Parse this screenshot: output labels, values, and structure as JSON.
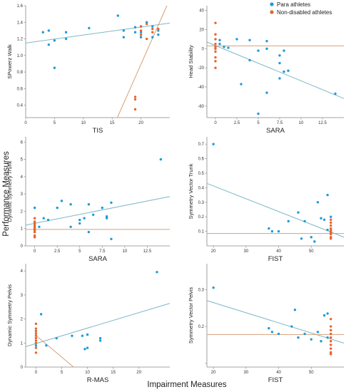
{
  "figure": {
    "ylabel": "Performance Measures",
    "xlabel": "Impairment Measures",
    "legend": [
      {
        "name": "Para athletes",
        "color": "#1f9bd7"
      },
      {
        "name": "Non-disabled athletes",
        "color": "#e8632b"
      }
    ],
    "colors": {
      "para_line": "#7fb7c8",
      "nd_line": "#d6a07a",
      "axis": "#888888"
    }
  },
  "chart_data": [
    {
      "type": "scatter",
      "xlabel": "TIS",
      "ylabel": "SPowerz Walk",
      "xlim": [
        0,
        25
      ],
      "ylim": [
        0.25,
        1.6
      ],
      "xticks": [
        0,
        5,
        10,
        15,
        20
      ],
      "yticks": [
        0.4,
        0.6,
        0.8,
        1.0,
        1.2,
        1.4,
        1.6
      ],
      "ytick_labels": [
        "0.4",
        "0.6",
        "0.8",
        "1.0",
        "1.2",
        "1.4",
        "1.6"
      ],
      "series": [
        {
          "name": "Para athletes",
          "x": [
            3,
            4,
            4,
            5,
            5,
            7,
            7,
            11,
            16,
            17,
            17,
            19,
            19,
            20,
            20,
            20,
            21,
            22,
            22,
            23,
            23
          ],
          "y": [
            1.28,
            1.3,
            1.13,
            1.18,
            0.85,
            1.28,
            1.2,
            1.33,
            1.48,
            1.3,
            1.22,
            1.34,
            1.28,
            1.35,
            1.28,
            1.22,
            1.4,
            1.35,
            1.22,
            1.3,
            1.25
          ]
        },
        {
          "name": "Non-disabled athletes",
          "x": [
            19,
            19,
            19,
            20,
            20,
            20,
            21,
            21,
            22,
            22,
            23
          ],
          "y": [
            0.5,
            0.47,
            0.35,
            1.3,
            1.25,
            1.35,
            1.2,
            1.38,
            1.28,
            1.32,
            1.32
          ]
        }
      ],
      "fit_lines": [
        {
          "name": "Para athletes",
          "x": [
            0,
            25
          ],
          "y": [
            1.15,
            1.39
          ]
        },
        {
          "name": "Non-disabled athletes",
          "x": [
            15.9,
            24.5
          ],
          "y": [
            0.25,
            1.6
          ]
        }
      ]
    },
    {
      "type": "scatter",
      "xlabel": "SARA",
      "ylabel": "Head Stability",
      "xlim": [
        -1,
        15
      ],
      "ylim": [
        -72,
        45
      ],
      "xticks": [
        0,
        2.5,
        5,
        7.5,
        10,
        12.5
      ],
      "xtick_labels": [
        "0",
        "2.5",
        "5",
        "7.5",
        "10",
        "12.5"
      ],
      "yticks": [
        -60,
        -40,
        -20,
        0,
        20,
        40
      ],
      "series": [
        {
          "name": "Para athletes",
          "x": [
            0.5,
            0.5,
            1,
            1.5,
            2.5,
            3,
            4,
            4,
            5,
            5,
            6,
            6,
            6,
            7.5,
            7.5,
            7.5,
            8,
            8,
            8.5,
            14
          ],
          "y": [
            9,
            5,
            2,
            1,
            10,
            -37,
            9,
            -12,
            -68,
            -2,
            -46,
            8,
            0,
            -7,
            -15,
            -31,
            -24,
            -2,
            -23,
            -47
          ]
        },
        {
          "name": "Non-disabled athletes",
          "x": [
            0,
            0,
            0,
            0,
            0,
            0,
            0,
            0,
            0,
            0
          ],
          "y": [
            27,
            15,
            10,
            5,
            0,
            -3,
            -9,
            -13,
            -20,
            2
          ]
        }
      ],
      "fit_lines": [
        {
          "name": "Para athletes",
          "x": [
            -1,
            15
          ],
          "y": [
            7,
            -52
          ]
        },
        {
          "name": "Non-disabled athletes",
          "x": [
            -1,
            15
          ],
          "y": [
            3,
            3
          ]
        }
      ]
    },
    {
      "type": "scatter",
      "xlabel": "SARA",
      "ylabel": "Dynamic Symmetry Trunk",
      "xlim": [
        -1,
        15
      ],
      "ylim": [
        0,
        6.3
      ],
      "xticks": [
        0,
        2.5,
        5,
        7.5,
        10,
        12.5
      ],
      "xtick_labels": [
        "0",
        "2.5",
        "5",
        "7.5",
        "10",
        "12.5"
      ],
      "yticks": [
        0,
        1,
        2,
        3,
        4,
        5,
        6
      ],
      "series": [
        {
          "name": "Para athletes",
          "x": [
            0,
            0.5,
            1,
            1.5,
            2.5,
            3,
            4,
            4,
            5,
            5,
            5.5,
            6,
            6,
            6.5,
            7.5,
            8,
            8,
            8.5,
            8.5,
            14
          ],
          "y": [
            2.2,
            1.1,
            1.6,
            1.5,
            2.2,
            2.6,
            2.4,
            1.1,
            1.3,
            1.5,
            1.6,
            0.8,
            2.4,
            1.8,
            2.2,
            1.7,
            1.6,
            2.5,
            0.4,
            5.0
          ]
        },
        {
          "name": "Non-disabled athletes",
          "x": [
            0,
            0,
            0,
            0,
            0,
            0,
            0,
            0,
            0,
            0
          ],
          "y": [
            1.6,
            1.4,
            1.3,
            1.2,
            1.1,
            1.0,
            0.9,
            0.8,
            0.6,
            0.5
          ]
        }
      ],
      "fit_lines": [
        {
          "name": "Para athletes",
          "x": [
            -1,
            15
          ],
          "y": [
            1.2,
            2.85
          ]
        },
        {
          "name": "Non-disabled athletes",
          "x": [
            -1,
            15
          ],
          "y": [
            0.95,
            0.95
          ]
        }
      ]
    },
    {
      "type": "scatter",
      "xlabel": "FIST",
      "ylabel": "Symmetry Vector Trunk",
      "xlim": [
        18,
        60
      ],
      "ylim": [
        0,
        0.75
      ],
      "xticks": [
        20,
        30,
        40,
        50
      ],
      "yticks": [
        0.1,
        0.2,
        0.3,
        0.4,
        0.5,
        0.6,
        0.7
      ],
      "series": [
        {
          "name": "Para athletes",
          "x": [
            20,
            37,
            38,
            40,
            43,
            46,
            47,
            48,
            50,
            51,
            52,
            53,
            54,
            55,
            55,
            56
          ],
          "y": [
            0.7,
            0.12,
            0.1,
            0.1,
            0.17,
            0.23,
            0.05,
            0.17,
            0.06,
            0.03,
            0.3,
            0.19,
            0.18,
            0.35,
            0.11,
            0.2
          ]
        },
        {
          "name": "Non-disabled athletes",
          "x": [
            56,
            56,
            56,
            56,
            56,
            56,
            56,
            56,
            56,
            56
          ],
          "y": [
            0.18,
            0.16,
            0.14,
            0.12,
            0.11,
            0.1,
            0.09,
            0.08,
            0.06,
            0.05
          ]
        }
      ],
      "fit_lines": [
        {
          "name": "Para athletes",
          "x": [
            18,
            60
          ],
          "y": [
            0.43,
            0.06
          ]
        },
        {
          "name": "Non-disabled athletes",
          "x": [
            18,
            60
          ],
          "y": [
            0.085,
            0.085
          ]
        }
      ]
    },
    {
      "type": "scatter",
      "xlabel": "R-MAS",
      "ylabel": "Dynamic Symmetry Pelvis",
      "xlim": [
        -2,
        26
      ],
      "ylim": [
        0,
        4.3
      ],
      "xticks": [
        0,
        5,
        10,
        15,
        20
      ],
      "yticks": [
        0,
        1,
        2,
        3,
        4
      ],
      "series": [
        {
          "name": "Para athletes",
          "x": [
            0,
            1,
            2,
            4,
            7,
            9,
            9.5,
            10,
            10,
            12.5,
            12.5,
            23.5
          ],
          "y": [
            0.9,
            2.2,
            0.9,
            1.2,
            1.3,
            1.3,
            0.75,
            0.8,
            1.35,
            1.2,
            1.1,
            3.95
          ]
        },
        {
          "name": "Non-disabled athletes",
          "x": [
            0,
            0,
            0,
            0,
            0,
            0,
            0,
            0,
            0,
            0
          ],
          "y": [
            1.8,
            1.6,
            1.5,
            1.4,
            1.3,
            1.2,
            1.1,
            1.0,
            0.8,
            0.6
          ]
        }
      ],
      "fit_lines": [
        {
          "name": "Para athletes",
          "x": [
            -2,
            26
          ],
          "y": [
            0.85,
            2.65
          ]
        },
        {
          "name": "Non-disabled athletes",
          "x": [
            -0.2,
            7.3
          ],
          "y": [
            1.35,
            0
          ]
        }
      ]
    },
    {
      "type": "scatter",
      "xlabel": "FIST",
      "ylabel": "Symmetry Vector Pelvis",
      "xlim": [
        18,
        60
      ],
      "ylim": [
        0.09,
        0.37
      ],
      "xticks": [
        20,
        30,
        40,
        50
      ],
      "yticks": [
        0.1,
        0.2,
        0.3
      ],
      "ytick_labels": [
        "",
        "0.2",
        "0.3"
      ],
      "series": [
        {
          "name": "Para athletes",
          "x": [
            20,
            37,
            38,
            40,
            44,
            45,
            46,
            48,
            50,
            52,
            53,
            54,
            55,
            55
          ],
          "y": [
            0.305,
            0.195,
            0.185,
            0.18,
            0.2,
            0.245,
            0.17,
            0.18,
            0.165,
            0.185,
            0.16,
            0.23,
            0.235,
            0.17
          ]
        },
        {
          "name": "Non-disabled athletes",
          "x": [
            56,
            56,
            56,
            56,
            56,
            56,
            56,
            56,
            56,
            56
          ],
          "y": [
            0.22,
            0.2,
            0.19,
            0.18,
            0.17,
            0.16,
            0.15,
            0.14,
            0.13,
            0.125
          ]
        }
      ],
      "fit_lines": [
        {
          "name": "Para athletes",
          "x": [
            18,
            60
          ],
          "y": [
            0.27,
            0.155
          ]
        },
        {
          "name": "Non-disabled athletes",
          "x": [
            18,
            60
          ],
          "y": [
            0.178,
            0.178
          ]
        }
      ]
    }
  ]
}
